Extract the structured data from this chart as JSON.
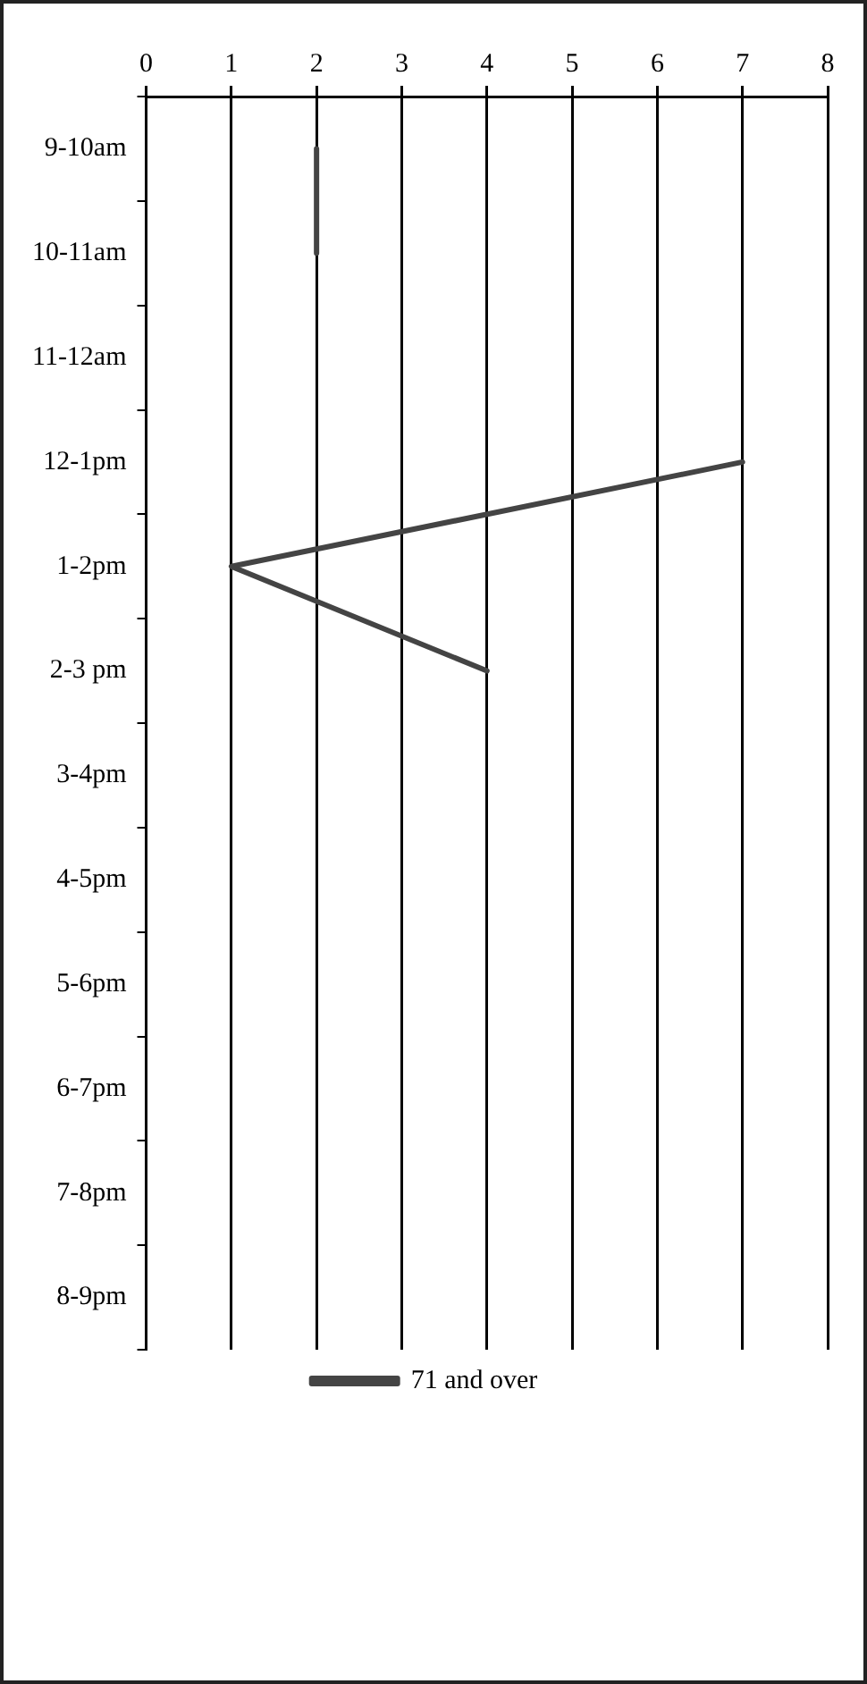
{
  "chart_data": {
    "type": "line",
    "orientation": "horizontal",
    "categories": [
      "9-10am",
      "10-11am",
      "11-12am",
      "12-1pm",
      "1-2pm",
      "2-3 pm",
      "3-4pm",
      "4-5pm",
      "5-6pm",
      "6-7pm",
      "7-8pm",
      "8-9pm"
    ],
    "series": [
      {
        "name": "71 and over",
        "color": "#444444",
        "values": [
          2,
          2,
          null,
          7,
          1,
          4,
          null,
          null,
          null,
          null,
          null,
          null
        ]
      }
    ],
    "xlim": [
      0,
      8
    ],
    "xticks": [
      0,
      1,
      2,
      3,
      4,
      5,
      6,
      7,
      8
    ],
    "grid": "x",
    "legend": "bottom",
    "marker": "none",
    "line_style": "solid"
  }
}
